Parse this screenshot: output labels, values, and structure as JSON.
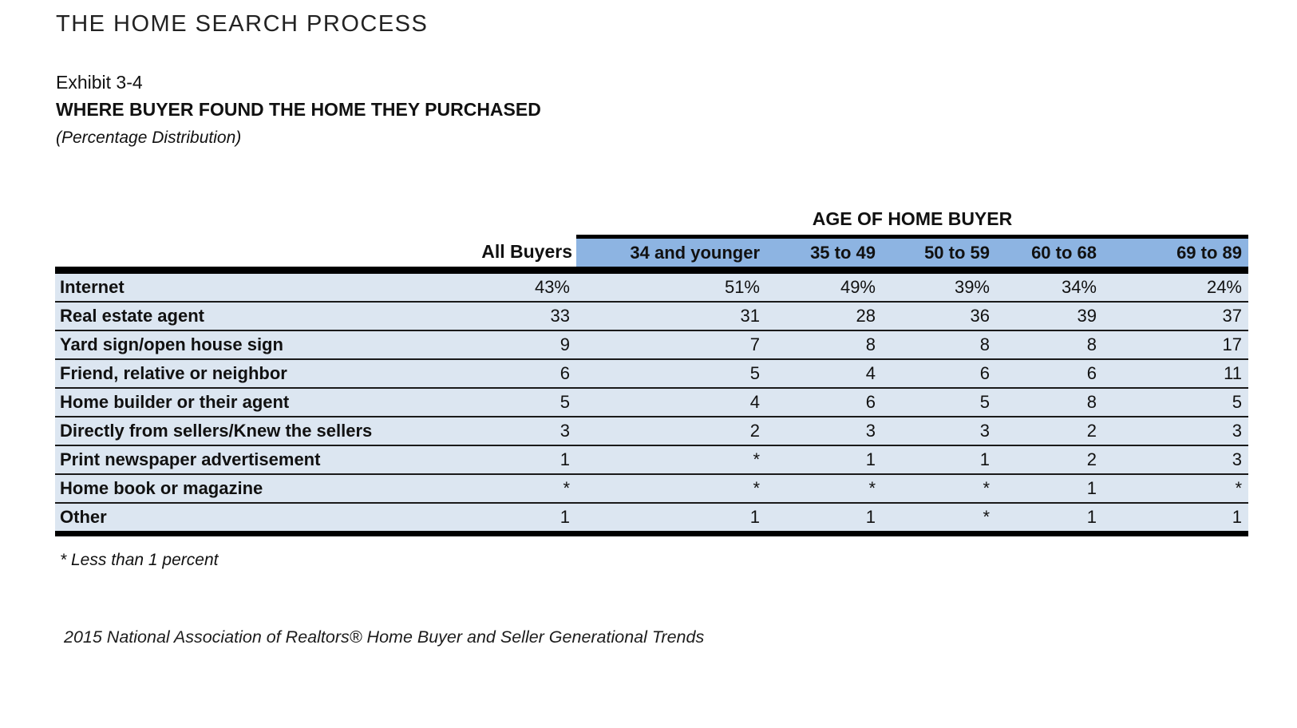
{
  "page": {
    "section_title": "THE HOME SEARCH PROCESS",
    "exhibit_label": "Exhibit 3-4",
    "exhibit_title": "WHERE BUYER FOUND THE HOME THEY PURCHASED",
    "subtitle": "(Percentage Distribution)",
    "footnote": "* Less than 1 percent",
    "source": "2015 National Association of Realtors® Home Buyer and Seller Generational Trends"
  },
  "table": {
    "group_header": "AGE OF HOME BUYER",
    "all_buyers_header": "All Buyers",
    "age_columns": [
      "34 and younger",
      "35 to 49",
      "50 to 59",
      "60 to 68",
      "69 to 89"
    ],
    "rows": [
      {
        "label": "Internet",
        "values": [
          "43%",
          "51%",
          "49%",
          "39%",
          "34%",
          "24%"
        ]
      },
      {
        "label": "Real estate agent",
        "values": [
          "33",
          "31",
          "28",
          "36",
          "39",
          "37"
        ]
      },
      {
        "label": "Yard sign/open house sign",
        "values": [
          "9",
          "7",
          "8",
          "8",
          "8",
          "17"
        ]
      },
      {
        "label": "Friend, relative or neighbor",
        "values": [
          "6",
          "5",
          "4",
          "6",
          "6",
          "11"
        ]
      },
      {
        "label": "Home builder or their agent",
        "values": [
          "5",
          "4",
          "6",
          "5",
          "8",
          "5"
        ]
      },
      {
        "label": "Directly from sellers/Knew the sellers",
        "values": [
          "3",
          "2",
          "3",
          "3",
          "2",
          "3"
        ]
      },
      {
        "label": "Print newspaper advertisement",
        "values": [
          "1",
          "*",
          "1",
          "1",
          "2",
          "3"
        ]
      },
      {
        "label": "Home book or magazine",
        "values": [
          "*",
          "*",
          "*",
          "*",
          "1",
          "*"
        ]
      },
      {
        "label": "Other",
        "values": [
          "1",
          "1",
          "1",
          "*",
          "1",
          "1"
        ]
      }
    ],
    "colors": {
      "header_blue": "#8DB4E2",
      "row_blue": "#DCE6F1"
    }
  }
}
